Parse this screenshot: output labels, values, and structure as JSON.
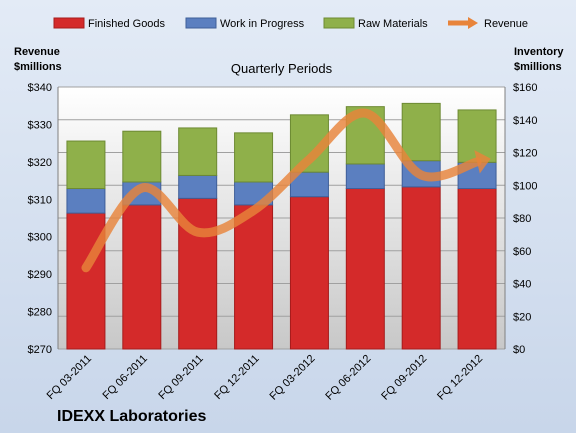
{
  "chart_data": {
    "type": "bar",
    "stacked": true,
    "subtitle": "Quarterly Periods",
    "company": "IDEXX Laboratories",
    "categories": [
      "FQ 03-2011",
      "FQ 06-2011",
      "FQ 09-2011",
      "FQ 12-2011",
      "FQ 03-2012",
      "FQ 06-2012",
      "FQ 09-2012",
      "FQ 12-2012"
    ],
    "left_axis": {
      "title_line1": "Revenue",
      "title_line2": "$millions",
      "range": [
        270,
        340
      ],
      "ticks": [
        "$270",
        "$280",
        "$290",
        "$300",
        "$310",
        "$320",
        "$330",
        "$340"
      ]
    },
    "right_axis": {
      "title_line1": "Inventory",
      "title_line2": "$millions",
      "range": [
        0,
        160
      ],
      "ticks": [
        "$0",
        "$20",
        "$40",
        "$60",
        "$80",
        "$100",
        "$120",
        "$140",
        "$160"
      ]
    },
    "series": [
      {
        "name": "Finished Goods",
        "axis": "right",
        "color": "#d42a2a",
        "values": [
          83,
          88,
          92,
          88,
          93,
          98,
          99,
          98
        ]
      },
      {
        "name": "Work in Progress",
        "axis": "right",
        "color": "#5b7fc0",
        "values": [
          15,
          14,
          14,
          14,
          15,
          15,
          16,
          16
        ]
      },
      {
        "name": "Raw Materials",
        "axis": "right",
        "color": "#8fb04a",
        "values": [
          29,
          31,
          29,
          30,
          35,
          35,
          35,
          32
        ]
      },
      {
        "name": "Revenue",
        "axis": "left",
        "type": "line",
        "color": "#e8843a",
        "values": [
          291.7,
          313,
          301.2,
          307,
          320.7,
          333,
          316.5,
          320
        ]
      }
    ],
    "legend_position": "top",
    "grid": true
  }
}
